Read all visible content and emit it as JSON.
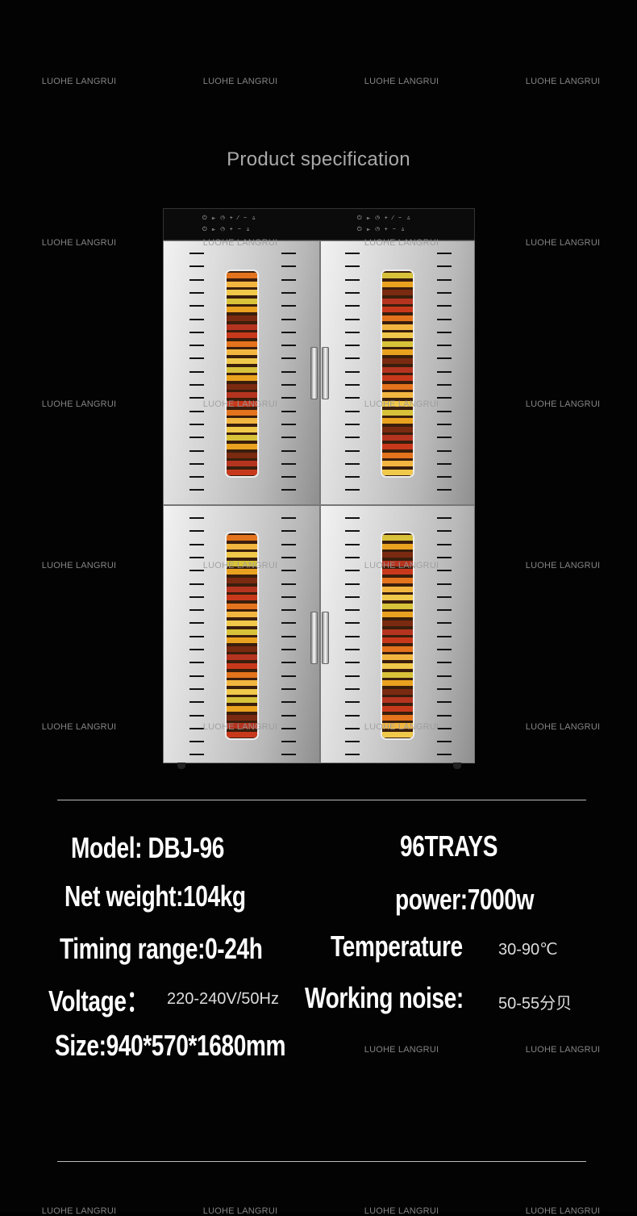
{
  "watermark": "LUOHE LANGRUI",
  "title": "Product specification",
  "product_image": {
    "description_alt": "",
    "colors": {
      "steel": "#cfcfcf",
      "panel": "#0b0b0b",
      "food": "#e8a020"
    }
  },
  "control_panel": {
    "row1": "⏻ ⊪ ◷    + ⁄ − ♙",
    "row2": "⏻ ⊪ ◷    + − ♙"
  },
  "specs": {
    "model": "Model: DBJ-96",
    "trays": "96TRAYS",
    "net_weight": "Net weight:104kg",
    "power": "power:7000w",
    "timing": "Timing range:0-24h",
    "temperature_label": "Temperature",
    "temperature_value": "30-90℃",
    "voltage_label": "Voltage：",
    "voltage_value": "220-240V/50Hz",
    "noise_label": "Working noise:",
    "noise_value": "50-55分贝",
    "size": "Size:940*570*1680mm"
  }
}
